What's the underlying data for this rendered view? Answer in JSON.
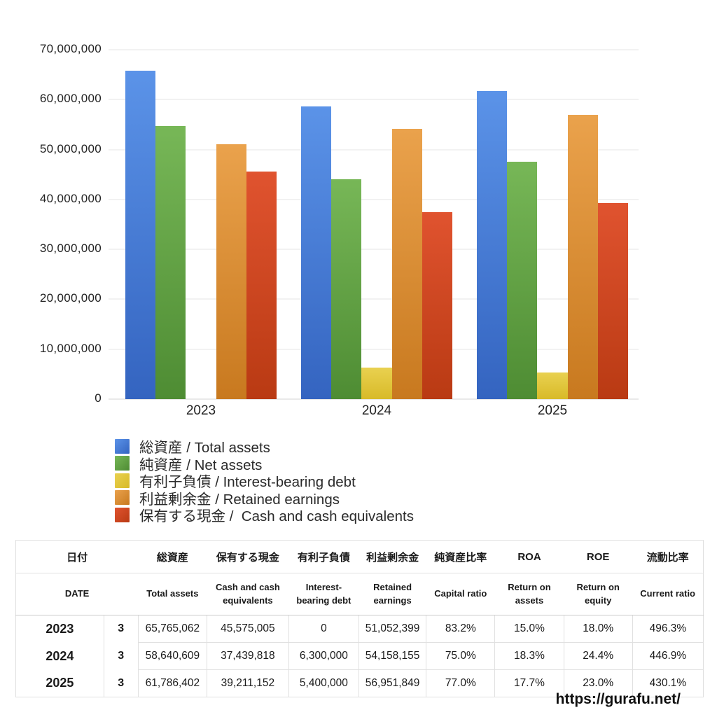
{
  "chart_data": {
    "type": "bar",
    "title": "",
    "categories": [
      "2023",
      "2024",
      "2025"
    ],
    "series": [
      {
        "name_ja": "総資産",
        "name_en": "Total assets",
        "legend_label": "総資産 / Total assets",
        "color_top": "#5b93e8",
        "color_bottom": "#3464c0",
        "values": [
          65765062,
          58640609,
          61786402
        ]
      },
      {
        "name_ja": "純資産",
        "name_en": "Net assets",
        "legend_label": "純資産 / Net assets",
        "color_top": "#77b757",
        "color_bottom": "#4e8c33",
        "values": [
          54716532,
          43980457,
          47575530
        ]
      },
      {
        "name_ja": "有利子負債",
        "name_en": "Interest-bearing debt",
        "legend_label": "有利子負債 / Interest-bearing debt",
        "color_top": "#e9d150",
        "color_bottom": "#d8ba28",
        "values": [
          0,
          6300000,
          5400000
        ]
      },
      {
        "name_ja": "利益剰余金",
        "name_en": "Retained earnings",
        "legend_label": "利益剰余金 / Retained earnings",
        "color_top": "#eaa24c",
        "color_bottom": "#c8791f",
        "values": [
          51052399,
          54158155,
          56951849
        ]
      },
      {
        "name_ja": "保有する現金",
        "name_en": "Cash and cash equivalents",
        "legend_label": "保有する現金 /  Cash and cash equivalents",
        "color_top": "#e0532f",
        "color_bottom": "#b93a13",
        "values": [
          45575005,
          37439818,
          39211152
        ]
      }
    ],
    "xlabel": "",
    "ylabel": "",
    "ylim": [
      0,
      70000000
    ],
    "grid": true,
    "legend_position": "bottom-left",
    "yticks": [
      {
        "value": 0,
        "label": "0"
      },
      {
        "value": 10000000,
        "label": "10,000,000"
      },
      {
        "value": 20000000,
        "label": "20,000,000"
      },
      {
        "value": 30000000,
        "label": "30,000,000"
      },
      {
        "value": 40000000,
        "label": "40,000,000"
      },
      {
        "value": 50000000,
        "label": "50,000,000"
      },
      {
        "value": 60000000,
        "label": "60,000,000"
      },
      {
        "value": 70000000,
        "label": "70,000,000"
      }
    ]
  },
  "table": {
    "headers_ja": [
      "日付",
      "総資産",
      "保有する現金",
      "有利子負債",
      "利益剰余金",
      "純資産比率",
      "ROA",
      "ROE",
      "流動比率"
    ],
    "headers_en": [
      "DATE",
      "Total assets",
      "Cash and cash equivalents",
      "Interest-bearing debt",
      "Retained earnings",
      "Capital ratio",
      "Return on assets",
      "Return on equity",
      "Current ratio"
    ],
    "col_widths_pct": [
      12.8,
      5.0,
      10.0,
      11.9,
      10.2,
      9.8,
      10.0,
      10.0,
      10.0,
      10.3
    ],
    "rows": [
      {
        "year": "2023",
        "month": "3",
        "cells": [
          "65,765,062",
          "45,575,005",
          "0",
          "51,052,399",
          "83.2%",
          "15.0%",
          "18.0%",
          "496.3%"
        ]
      },
      {
        "year": "2024",
        "month": "3",
        "cells": [
          "58,640,609",
          "37,439,818",
          "6,300,000",
          "54,158,155",
          "75.0%",
          "18.3%",
          "24.4%",
          "446.9%"
        ]
      },
      {
        "year": "2025",
        "month": "3",
        "cells": [
          "61,786,402",
          "39,211,152",
          "5,400,000",
          "56,951,849",
          "77.0%",
          "17.7%",
          "23.0%",
          "430.1%"
        ]
      }
    ]
  },
  "footer": {
    "url": "https://gurafu.net/"
  }
}
